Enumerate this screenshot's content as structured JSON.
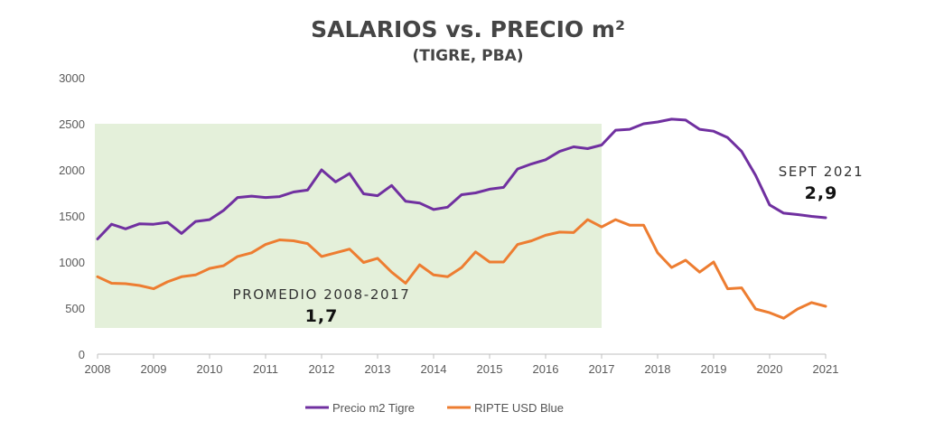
{
  "chart_data": {
    "type": "line",
    "title": "SALARIOS vs. PRECIO m²",
    "subtitle": "(TIGRE, PBA)",
    "ylim": [
      0,
      3000
    ],
    "xlim": [
      2008,
      2021
    ],
    "yticks": [
      0,
      500,
      1000,
      1500,
      2000,
      2500,
      3000
    ],
    "xticks": [
      2008,
      2009,
      2010,
      2011,
      2012,
      2013,
      2014,
      2015,
      2016,
      2017,
      2018,
      2019,
      2020,
      2021
    ],
    "grid": false,
    "legend_position": "bottom",
    "highlight_region": {
      "x": [
        2008,
        2017
      ],
      "y": [
        0,
        2500
      ],
      "color": "#e4f0da"
    },
    "annotations": [
      {
        "label": "PROMEDIO 2008-2017",
        "value": "1,7"
      },
      {
        "label": "SEPT 2021",
        "value": "2,9"
      }
    ],
    "series": [
      {
        "name": "Precio m2 Tigre",
        "color": "#7030a0",
        "points": [
          [
            2008,
            1250
          ],
          [
            2008.25,
            1410
          ],
          [
            2008.5,
            1360
          ],
          [
            2008.75,
            1415
          ],
          [
            2009,
            1410
          ],
          [
            2009.25,
            1430
          ],
          [
            2009.5,
            1310
          ],
          [
            2009.75,
            1440
          ],
          [
            2010,
            1460
          ],
          [
            2010.25,
            1560
          ],
          [
            2010.5,
            1700
          ],
          [
            2010.75,
            1715
          ],
          [
            2011,
            1700
          ],
          [
            2011.25,
            1710
          ],
          [
            2011.5,
            1760
          ],
          [
            2011.75,
            1780
          ],
          [
            2012,
            2000
          ],
          [
            2012.25,
            1870
          ],
          [
            2012.5,
            1960
          ],
          [
            2012.75,
            1740
          ],
          [
            2013,
            1720
          ],
          [
            2013.25,
            1830
          ],
          [
            2013.5,
            1660
          ],
          [
            2013.75,
            1640
          ],
          [
            2014,
            1570
          ],
          [
            2014.25,
            1595
          ],
          [
            2014.5,
            1730
          ],
          [
            2014.75,
            1750
          ],
          [
            2015,
            1790
          ],
          [
            2015.25,
            1810
          ],
          [
            2015.5,
            2010
          ],
          [
            2015.75,
            2065
          ],
          [
            2016,
            2110
          ],
          [
            2016.25,
            2200
          ],
          [
            2016.5,
            2250
          ],
          [
            2016.75,
            2230
          ],
          [
            2017,
            2270
          ],
          [
            2017.25,
            2430
          ],
          [
            2017.5,
            2440
          ],
          [
            2017.75,
            2500
          ],
          [
            2018,
            2520
          ],
          [
            2018.25,
            2550
          ],
          [
            2018.5,
            2540
          ],
          [
            2018.75,
            2440
          ],
          [
            2019,
            2420
          ],
          [
            2019.25,
            2350
          ],
          [
            2019.5,
            2200
          ],
          [
            2019.75,
            1940
          ],
          [
            2020,
            1620
          ],
          [
            2020.25,
            1530
          ],
          [
            2020.5,
            1515
          ],
          [
            2020.75,
            1495
          ],
          [
            2021,
            1480
          ]
        ]
      },
      {
        "name": "RIPTE USD Blue",
        "color": "#ed7d31",
        "points": [
          [
            2008,
            840
          ],
          [
            2008.25,
            770
          ],
          [
            2008.5,
            765
          ],
          [
            2008.75,
            745
          ],
          [
            2009,
            710
          ],
          [
            2009.25,
            785
          ],
          [
            2009.5,
            840
          ],
          [
            2009.75,
            860
          ],
          [
            2010,
            930
          ],
          [
            2010.25,
            960
          ],
          [
            2010.5,
            1060
          ],
          [
            2010.75,
            1100
          ],
          [
            2011,
            1190
          ],
          [
            2011.25,
            1240
          ],
          [
            2011.5,
            1230
          ],
          [
            2011.75,
            1200
          ],
          [
            2012,
            1060
          ],
          [
            2012.25,
            1100
          ],
          [
            2012.5,
            1140
          ],
          [
            2012.75,
            995
          ],
          [
            2013,
            1040
          ],
          [
            2013.25,
            890
          ],
          [
            2013.5,
            770
          ],
          [
            2013.75,
            970
          ],
          [
            2014,
            860
          ],
          [
            2014.25,
            840
          ],
          [
            2014.5,
            940
          ],
          [
            2014.75,
            1110
          ],
          [
            2015,
            1000
          ],
          [
            2015.25,
            1000
          ],
          [
            2015.5,
            1190
          ],
          [
            2015.75,
            1230
          ],
          [
            2016,
            1290
          ],
          [
            2016.25,
            1325
          ],
          [
            2016.5,
            1320
          ],
          [
            2016.75,
            1460
          ],
          [
            2017,
            1380
          ],
          [
            2017.25,
            1460
          ],
          [
            2017.5,
            1400
          ],
          [
            2017.75,
            1400
          ],
          [
            2018,
            1100
          ],
          [
            2018.25,
            940
          ],
          [
            2018.5,
            1020
          ],
          [
            2018.75,
            890
          ],
          [
            2019,
            1000
          ],
          [
            2019.25,
            710
          ],
          [
            2019.5,
            720
          ],
          [
            2019.75,
            490
          ],
          [
            2020,
            450
          ],
          [
            2020.25,
            390
          ],
          [
            2020.5,
            490
          ],
          [
            2020.75,
            560
          ],
          [
            2021,
            520
          ]
        ]
      }
    ]
  }
}
